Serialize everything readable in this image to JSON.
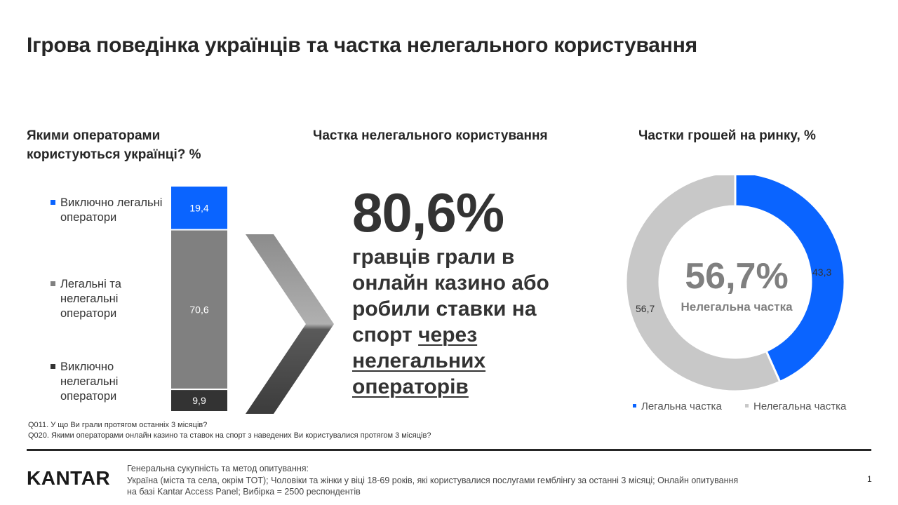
{
  "title": "Ігрова поведінка українців та частка нелегального користування",
  "left": {
    "title": "Якими операторами користуються українці? %",
    "legend": [
      {
        "label": "Виключно легальні оператори",
        "color": "#0a64ff"
      },
      {
        "label": "Легальні та нелегальні оператори",
        "color": "#808080"
      },
      {
        "label": "Виключно нелегальні оператори",
        "color": "#333333"
      }
    ]
  },
  "middle": {
    "title": "Частка нелегального користування",
    "big_value": "80,6%",
    "desc_plain": "гравців грали в онлайн казино або робили ставки на спорт",
    "desc_underlined": "через нелегальних операторів"
  },
  "right": {
    "title": "Частки грошей на ринку, %",
    "center_value": "56,7%",
    "center_label": "Нелегальна частка",
    "legend": [
      {
        "label": "Легальна частка",
        "color": "#0a64ff"
      },
      {
        "label": "Нелегальна частка",
        "color": "#c8c8c8"
      }
    ]
  },
  "chart_data": [
    {
      "type": "bar",
      "stacked": true,
      "categories": [
        ""
      ],
      "series": [
        {
          "name": "Виключно легальні оператори",
          "values": [
            19.4
          ],
          "label": "19,4",
          "color": "#0a64ff"
        },
        {
          "name": "Легальні та нелегальні оператори",
          "values": [
            70.6
          ],
          "label": "70,6",
          "color": "#808080"
        },
        {
          "name": "Виключно нелегальні оператори",
          "values": [
            9.9
          ],
          "label": "9,9",
          "color": "#333333"
        }
      ]
    },
    {
      "type": "pie",
      "donut": true,
      "categories": [
        "Легальна частка",
        "Нелегальна частка"
      ],
      "values": [
        43.3,
        56.7
      ],
      "labels": [
        "43,3",
        "56,7"
      ],
      "colors": [
        "#0a64ff",
        "#c8c8c8"
      ]
    }
  ],
  "notes": [
    "Q011. У що Ви грали протягом останніх 3 місяців?",
    "Q020. Якими операторами онлайн казино та ставок на спорт з наведених Ви користувалися протягом 3 місяців?"
  ],
  "footer": {
    "logo": "KANTAR",
    "heading": "Генеральна сукупність та метод опитування:",
    "text": "Україна (міста та села, окрім ТОТ); Чоловіки та жінки у віці 18-69 років, які користувалися послугами гемблінгу за останні 3 місяці; Онлайн опитування на базі Kantar Access Panel; Вибірка = 2500 респондентів",
    "page_number": "1"
  }
}
